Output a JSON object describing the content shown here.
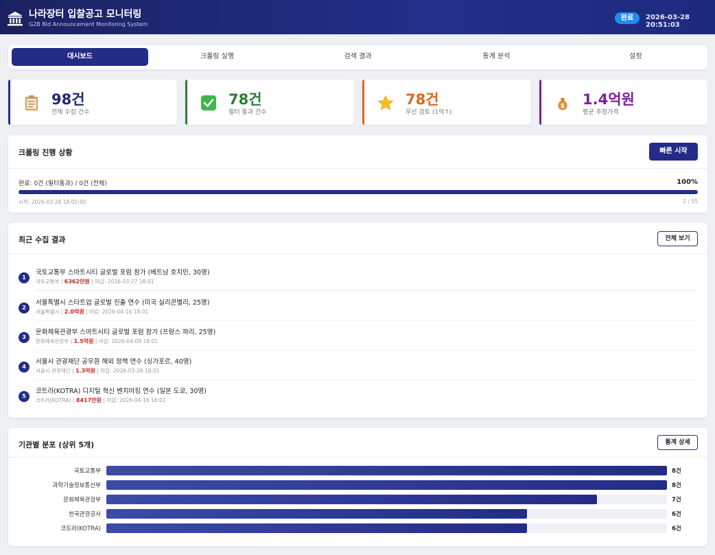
{
  "header": {
    "title": "나라장터 입찰공고 모니터링",
    "subtitle": "G2B Bid Announcement Monitoring System",
    "status": "완료",
    "datetime": "2026-03-28 20:51:03"
  },
  "tabs": [
    {
      "label": "대시보드",
      "active": true
    },
    {
      "label": "크롤링 실행",
      "active": false
    },
    {
      "label": "검색 결과",
      "active": false
    },
    {
      "label": "통계 분석",
      "active": false
    },
    {
      "label": "설정",
      "active": false
    }
  ],
  "stats": [
    {
      "value": "98건",
      "label": "전체 수집 건수",
      "icon": "clipboard-icon",
      "color": "#1e2a78"
    },
    {
      "value": "78건",
      "label": "필터 통과 건수",
      "icon": "check-icon",
      "color": "#2e7d32"
    },
    {
      "value": "78건",
      "label": "우선 검토 (1억↑)",
      "icon": "star-icon",
      "color": "#e0661f"
    },
    {
      "value": "1.4억원",
      "label": "평균 추정가격",
      "icon": "money-bag-icon",
      "color": "#7b1fa2"
    }
  ],
  "crawl": {
    "title": "크롤링 진행 상황",
    "quick_start": "빠른 시작",
    "progress_label": "완료: 0건 (필터통과) / 0건 (전체)",
    "progress_percent_text": "100%",
    "progress_fraction": 1.0,
    "start_time": "시작: 2026-03-28 18:02:00",
    "page_count": "2 / 55"
  },
  "recent": {
    "title": "최근 수집 결과",
    "view_all": "전체 보기",
    "items": [
      {
        "num": "1",
        "title": "국토교통부 스마트시티 글로벌 포럼 참가 (베트남 호치민, 30명)",
        "org": "국토교통부",
        "amount": "6362만원",
        "deadline": "마감: 2026-03-27 18:01"
      },
      {
        "num": "2",
        "title": "서울특별시 스타트업 글로벌 진출 연수 (미국 실리콘밸리, 25명)",
        "org": "서울특별시",
        "amount": "2.0억원",
        "deadline": "마감: 2026-04-16 18:01"
      },
      {
        "num": "3",
        "title": "문화체육관광부 스마트시티 글로벌 포럼 참가 (프랑스 파리, 25명)",
        "org": "문화체육관광부",
        "amount": "1.5억원",
        "deadline": "마감: 2026-04-09 18:01"
      },
      {
        "num": "4",
        "title": "서울시 관광재단 공무원 해외 정책 연수 (싱가포르, 40명)",
        "org": "서울시 관광재단",
        "amount": "1.3억원",
        "deadline": "마감: 2026-03-28 18:01"
      },
      {
        "num": "5",
        "title": "코트라(KOTRA) 디지털 혁신 벤치마킹 연수 (일본 도쿄, 30명)",
        "org": "코트라(KOTRA)",
        "amount": "8417만원",
        "deadline": "마감: 2026-04-16 18:01"
      }
    ]
  },
  "agencies": {
    "title": "기관별 분포 (상위 5개)",
    "detail_button": "통계 상세",
    "max": 8,
    "items": [
      {
        "name": "국토교통부",
        "count": 8,
        "count_label": "8건"
      },
      {
        "name": "과학기술정보통신부",
        "count": 8,
        "count_label": "8건"
      },
      {
        "name": "문화체육관광부",
        "count": 7,
        "count_label": "7건"
      },
      {
        "name": "한국관광공사",
        "count": 6,
        "count_label": "6건"
      },
      {
        "name": "코트라(KOTRA)",
        "count": 6,
        "count_label": "6건"
      }
    ]
  }
}
